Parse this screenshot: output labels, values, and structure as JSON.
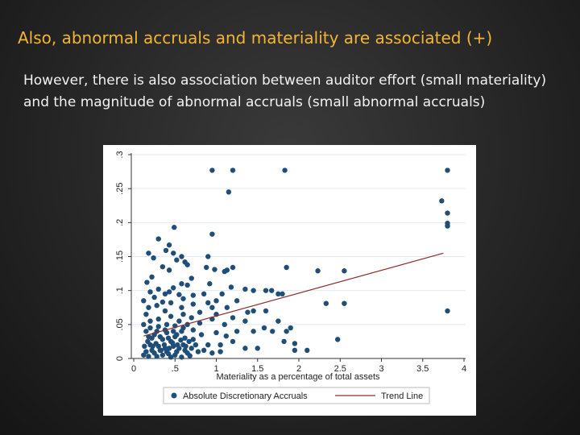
{
  "slide": {
    "title": "Also, abnormal accruals and materiality are associated (+)",
    "body": "However, there is also association between auditor effort (small materiality) and the magnitude of abnormal accruals (small abnormal accruals)"
  },
  "chart_data": {
    "type": "scatter",
    "title": "",
    "xlabel": "Materiality as a percentage of total assets",
    "ylabel": "",
    "xlim": [
      0,
      4
    ],
    "ylim": [
      0,
      0.3
    ],
    "x_ticks": [
      "0",
      ".5",
      "1",
      "1.5",
      "2",
      "2.5",
      "3",
      "3.5",
      "4"
    ],
    "y_ticks": [
      "0",
      ".05",
      ".1",
      ".15",
      ".2",
      ".25",
      ".3"
    ],
    "grid": true,
    "legend_position": "bottom",
    "colors": {
      "points": "#1f4e79",
      "trend": "#8b2c2c",
      "grid": "#e3eaf0"
    },
    "series": [
      {
        "name": "Absolute Discretionary Accruals",
        "kind": "scatter",
        "points": [
          [
            0.95,
            0.277
          ],
          [
            1.2,
            0.277
          ],
          [
            1.83,
            0.277
          ],
          [
            3.8,
            0.277
          ],
          [
            1.15,
            0.245
          ],
          [
            3.73,
            0.232
          ],
          [
            3.8,
            0.214
          ],
          [
            3.8,
            0.199
          ],
          [
            3.8,
            0.195
          ],
          [
            0.49,
            0.193
          ],
          [
            0.3,
            0.176
          ],
          [
            0.43,
            0.167
          ],
          [
            0.95,
            0.183
          ],
          [
            0.39,
            0.159
          ],
          [
            0.48,
            0.155
          ],
          [
            0.18,
            0.155
          ],
          [
            0.24,
            0.148
          ],
          [
            0.58,
            0.15
          ],
          [
            0.62,
            0.142
          ],
          [
            0.9,
            0.15
          ],
          [
            0.52,
            0.145
          ],
          [
            0.65,
            0.138
          ],
          [
            0.35,
            0.135
          ],
          [
            0.88,
            0.134
          ],
          [
            1.2,
            0.134
          ],
          [
            1.85,
            0.134
          ],
          [
            2.23,
            0.129
          ],
          [
            2.55,
            0.129
          ],
          [
            1.13,
            0.13
          ],
          [
            0.98,
            0.131
          ],
          [
            0.43,
            0.13
          ],
          [
            1.1,
            0.128
          ],
          [
            0.22,
            0.12
          ],
          [
            0.7,
            0.118
          ],
          [
            0.16,
            0.112
          ],
          [
            0.58,
            0.11
          ],
          [
            0.92,
            0.11
          ],
          [
            0.65,
            0.108
          ],
          [
            1.18,
            0.105
          ],
          [
            1.35,
            0.102
          ],
          [
            0.3,
            0.102
          ],
          [
            0.48,
            0.104
          ],
          [
            1.45,
            0.1
          ],
          [
            1.6,
            0.1
          ],
          [
            0.43,
            0.098
          ],
          [
            1.67,
            0.1
          ],
          [
            0.85,
            0.095
          ],
          [
            0.2,
            0.098
          ],
          [
            0.38,
            0.095
          ],
          [
            0.55,
            0.094
          ],
          [
            0.72,
            0.093
          ],
          [
            0.25,
            0.09
          ],
          [
            1.07,
            0.095
          ],
          [
            1.75,
            0.095
          ],
          [
            1.8,
            0.095
          ],
          [
            2.33,
            0.081
          ],
          [
            2.55,
            0.081
          ],
          [
            0.6,
            0.088
          ],
          [
            1.0,
            0.085
          ],
          [
            0.12,
            0.085
          ],
          [
            0.9,
            0.082
          ],
          [
            0.35,
            0.083
          ],
          [
            1.25,
            0.085
          ],
          [
            0.72,
            0.08
          ],
          [
            0.45,
            0.082
          ],
          [
            0.28,
            0.078
          ],
          [
            0.58,
            0.075
          ],
          [
            0.95,
            0.075
          ],
          [
            1.13,
            0.075
          ],
          [
            0.18,
            0.075
          ],
          [
            1.45,
            0.07
          ],
          [
            1.6,
            0.07
          ],
          [
            3.8,
            0.07
          ],
          [
            1.38,
            0.068
          ],
          [
            0.38,
            0.07
          ],
          [
            0.8,
            0.068
          ],
          [
            1.0,
            0.065
          ],
          [
            0.6,
            0.065
          ],
          [
            0.15,
            0.065
          ],
          [
            1.2,
            0.06
          ],
          [
            0.45,
            0.062
          ],
          [
            0.7,
            0.06
          ],
          [
            0.3,
            0.058
          ],
          [
            0.95,
            0.058
          ],
          [
            0.55,
            0.055
          ],
          [
            1.35,
            0.055
          ],
          [
            0.2,
            0.055
          ],
          [
            1.75,
            0.055
          ],
          [
            0.8,
            0.052
          ],
          [
            1.1,
            0.05
          ],
          [
            0.65,
            0.05
          ],
          [
            0.12,
            0.05
          ],
          [
            0.4,
            0.05
          ],
          [
            0.5,
            0.048
          ],
          [
            1.9,
            0.045
          ],
          [
            1.58,
            0.045
          ],
          [
            1.45,
            0.04
          ],
          [
            1.25,
            0.04
          ],
          [
            1.68,
            0.04
          ],
          [
            1.85,
            0.04
          ],
          [
            2.47,
            0.028
          ],
          [
            1.82,
            0.025
          ],
          [
            1.95,
            0.022
          ],
          [
            1.95,
            0.012
          ],
          [
            2.1,
            0.012
          ],
          [
            1.5,
            0.015
          ],
          [
            1.35,
            0.015
          ],
          [
            0.9,
            0.02
          ],
          [
            1.05,
            0.02
          ],
          [
            1.2,
            0.025
          ],
          [
            0.82,
            0.035
          ],
          [
            0.72,
            0.042
          ],
          [
            1.0,
            0.038
          ],
          [
            1.12,
            0.033
          ],
          [
            0.6,
            0.045
          ],
          [
            0.3,
            0.047
          ],
          [
            0.2,
            0.045
          ],
          [
            0.15,
            0.04
          ],
          [
            0.4,
            0.038
          ],
          [
            0.25,
            0.035
          ],
          [
            0.5,
            0.032
          ],
          [
            0.35,
            0.028
          ],
          [
            0.45,
            0.025
          ],
          [
            0.6,
            0.02
          ],
          [
            0.55,
            0.015
          ],
          [
            0.3,
            0.018
          ],
          [
            0.2,
            0.02
          ],
          [
            0.15,
            0.01
          ],
          [
            0.25,
            0.008
          ],
          [
            0.4,
            0.01
          ],
          [
            0.5,
            0.005
          ],
          [
            0.65,
            0.008
          ],
          [
            0.7,
            0.015
          ],
          [
            0.78,
            0.01
          ],
          [
            0.35,
            0.005
          ],
          [
            0.45,
            0.002
          ],
          [
            0.28,
            0.003
          ],
          [
            0.58,
            0.002
          ],
          [
            0.68,
            0.004
          ],
          [
            0.18,
            0.003
          ],
          [
            0.12,
            0.005
          ],
          [
            0.38,
            0.015
          ],
          [
            0.48,
            0.018
          ],
          [
            0.22,
            0.012
          ],
          [
            0.32,
            0.012
          ],
          [
            0.42,
            0.007
          ],
          [
            0.52,
            0.01
          ],
          [
            0.62,
            0.012
          ],
          [
            0.27,
            0.022
          ],
          [
            0.37,
            0.02
          ],
          [
            0.47,
            0.023
          ],
          [
            0.57,
            0.027
          ],
          [
            0.67,
            0.025
          ],
          [
            0.17,
            0.025
          ],
          [
            0.22,
            0.03
          ],
          [
            0.32,
            0.032
          ],
          [
            0.42,
            0.03
          ],
          [
            0.52,
            0.035
          ],
          [
            0.62,
            0.03
          ],
          [
            0.72,
            0.028
          ],
          [
            0.28,
            0.04
          ],
          [
            0.38,
            0.042
          ],
          [
            0.48,
            0.04
          ],
          [
            0.58,
            0.04
          ],
          [
            0.18,
            0.032
          ],
          [
            0.33,
            0.012
          ],
          [
            0.43,
            0.015
          ],
          [
            0.53,
            0.02
          ],
          [
            0.63,
            0.018
          ],
          [
            0.75,
            0.02
          ],
          [
            0.85,
            0.012
          ],
          [
            0.95,
            0.008
          ],
          [
            1.05,
            0.01
          ],
          [
            0.23,
            0.018
          ],
          [
            0.13,
            0.018
          ]
        ]
      },
      {
        "name": "Trend Line",
        "kind": "line",
        "points": [
          [
            0.12,
            0.033
          ],
          [
            3.75,
            0.155
          ]
        ]
      }
    ]
  }
}
